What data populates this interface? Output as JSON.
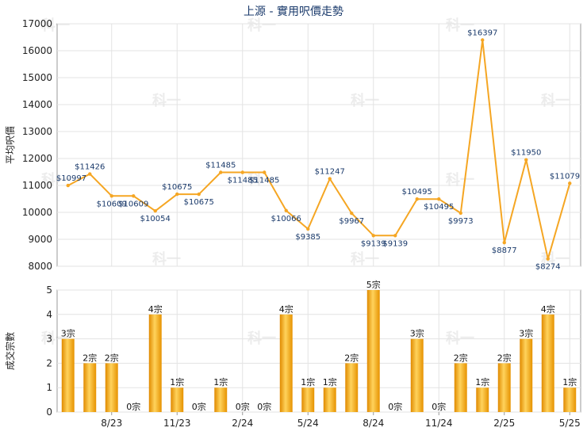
{
  "chart_data": [
    {
      "type": "line",
      "title": "上源 - 實用呎價走勢",
      "ylabel": "平均呎價",
      "ylim": [
        8000,
        17000
      ],
      "yticks": [
        8000,
        9000,
        10000,
        11000,
        12000,
        13000,
        14000,
        15000,
        16000,
        17000
      ],
      "color": "#f5a623",
      "series": [
        {
          "values": [
            10997,
            11426,
            10609,
            10609,
            10054,
            10675,
            10675,
            11485,
            11485,
            11485,
            10066,
            9385,
            11247,
            9967,
            9139,
            9139,
            10495,
            10495,
            9973,
            16397,
            8877,
            11950,
            8274,
            11079
          ]
        }
      ],
      "labels": [
        "$10997",
        "$11426",
        "$10609",
        "$10609",
        "$10054",
        "$10675",
        "$10675",
        "$11485",
        "$11485",
        "$11485",
        "$10066",
        "$9385",
        "$11247",
        "$9967",
        "$9139",
        "$9139",
        "$10495",
        "$10495",
        "$9973",
        "$16397",
        "$8877",
        "$11950",
        "$8274",
        "$11079"
      ]
    },
    {
      "type": "bar",
      "ylabel": "成交宗數",
      "ylim": [
        0,
        5
      ],
      "yticks": [
        0,
        1,
        2,
        3,
        4,
        5
      ],
      "color": "#f5a623",
      "values": [
        3,
        2,
        2,
        0,
        4,
        1,
        0,
        1,
        0,
        0,
        4,
        1,
        1,
        2,
        5,
        0,
        3,
        0,
        2,
        1,
        2,
        3,
        4,
        1
      ],
      "labels": [
        "3宗",
        "2宗",
        "2宗",
        "0宗",
        "4宗",
        "1宗",
        "0宗",
        "1宗",
        "0宗",
        "0宗",
        "4宗",
        "1宗",
        "1宗",
        "2宗",
        "5宗",
        "0宗",
        "3宗",
        "0宗",
        "2宗",
        "1宗",
        "2宗",
        "3宗",
        "4宗",
        "1宗"
      ],
      "x_tick_labels": [
        "8/23",
        "11/23",
        "2/24",
        "5/24",
        "8/24",
        "11/24",
        "2/25",
        "5/25"
      ]
    }
  ],
  "watermark": "科一"
}
